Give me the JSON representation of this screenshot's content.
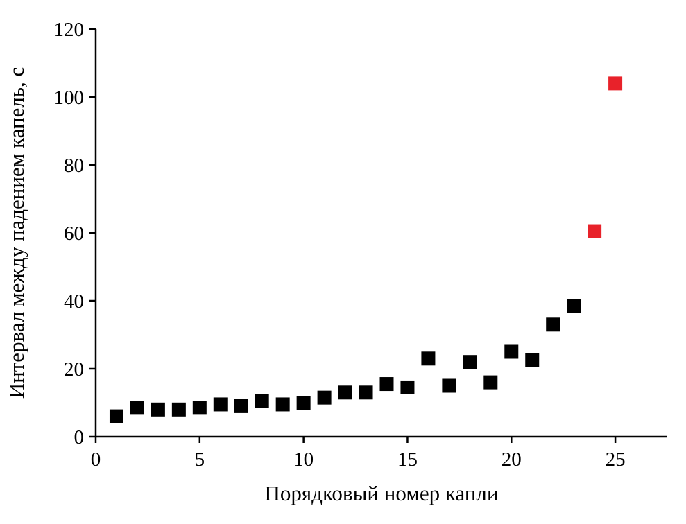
{
  "chart_data": {
    "type": "scatter",
    "title": "",
    "xlabel": "Порядковый номер капли",
    "ylabel": "Интервал между падением капель, с",
    "xlim": [
      0,
      27.5
    ],
    "ylim": [
      0,
      120
    ],
    "xticks": [
      0,
      5,
      10,
      15,
      20,
      25
    ],
    "yticks": [
      0,
      20,
      40,
      60,
      80,
      100,
      120
    ],
    "grid": false,
    "legend": "none",
    "marker": "square",
    "marker_size_px": 20,
    "colors": {
      "regular": "#000000",
      "outlier": "#e8222a",
      "axis": "#000000",
      "background": "#ffffff"
    },
    "series": [
      {
        "name": "regular-drops",
        "color": "#000000",
        "points": [
          [
            1,
            6
          ],
          [
            2,
            8.5
          ],
          [
            3,
            8
          ],
          [
            4,
            8
          ],
          [
            5,
            8.5
          ],
          [
            6,
            9.5
          ],
          [
            7,
            9
          ],
          [
            8,
            10.5
          ],
          [
            9,
            9.5
          ],
          [
            10,
            10
          ],
          [
            11,
            11.5
          ],
          [
            12,
            13
          ],
          [
            13,
            13
          ],
          [
            14,
            15.5
          ],
          [
            15,
            14.5
          ],
          [
            16,
            23
          ],
          [
            17,
            15
          ],
          [
            18,
            22
          ],
          [
            19,
            16
          ],
          [
            20,
            25
          ],
          [
            21,
            22.5
          ],
          [
            22,
            33
          ],
          [
            23,
            38.5
          ]
        ]
      },
      {
        "name": "outlier-drops",
        "color": "#e8222a",
        "points": [
          [
            24,
            60.5
          ],
          [
            25,
            104
          ]
        ]
      }
    ]
  }
}
